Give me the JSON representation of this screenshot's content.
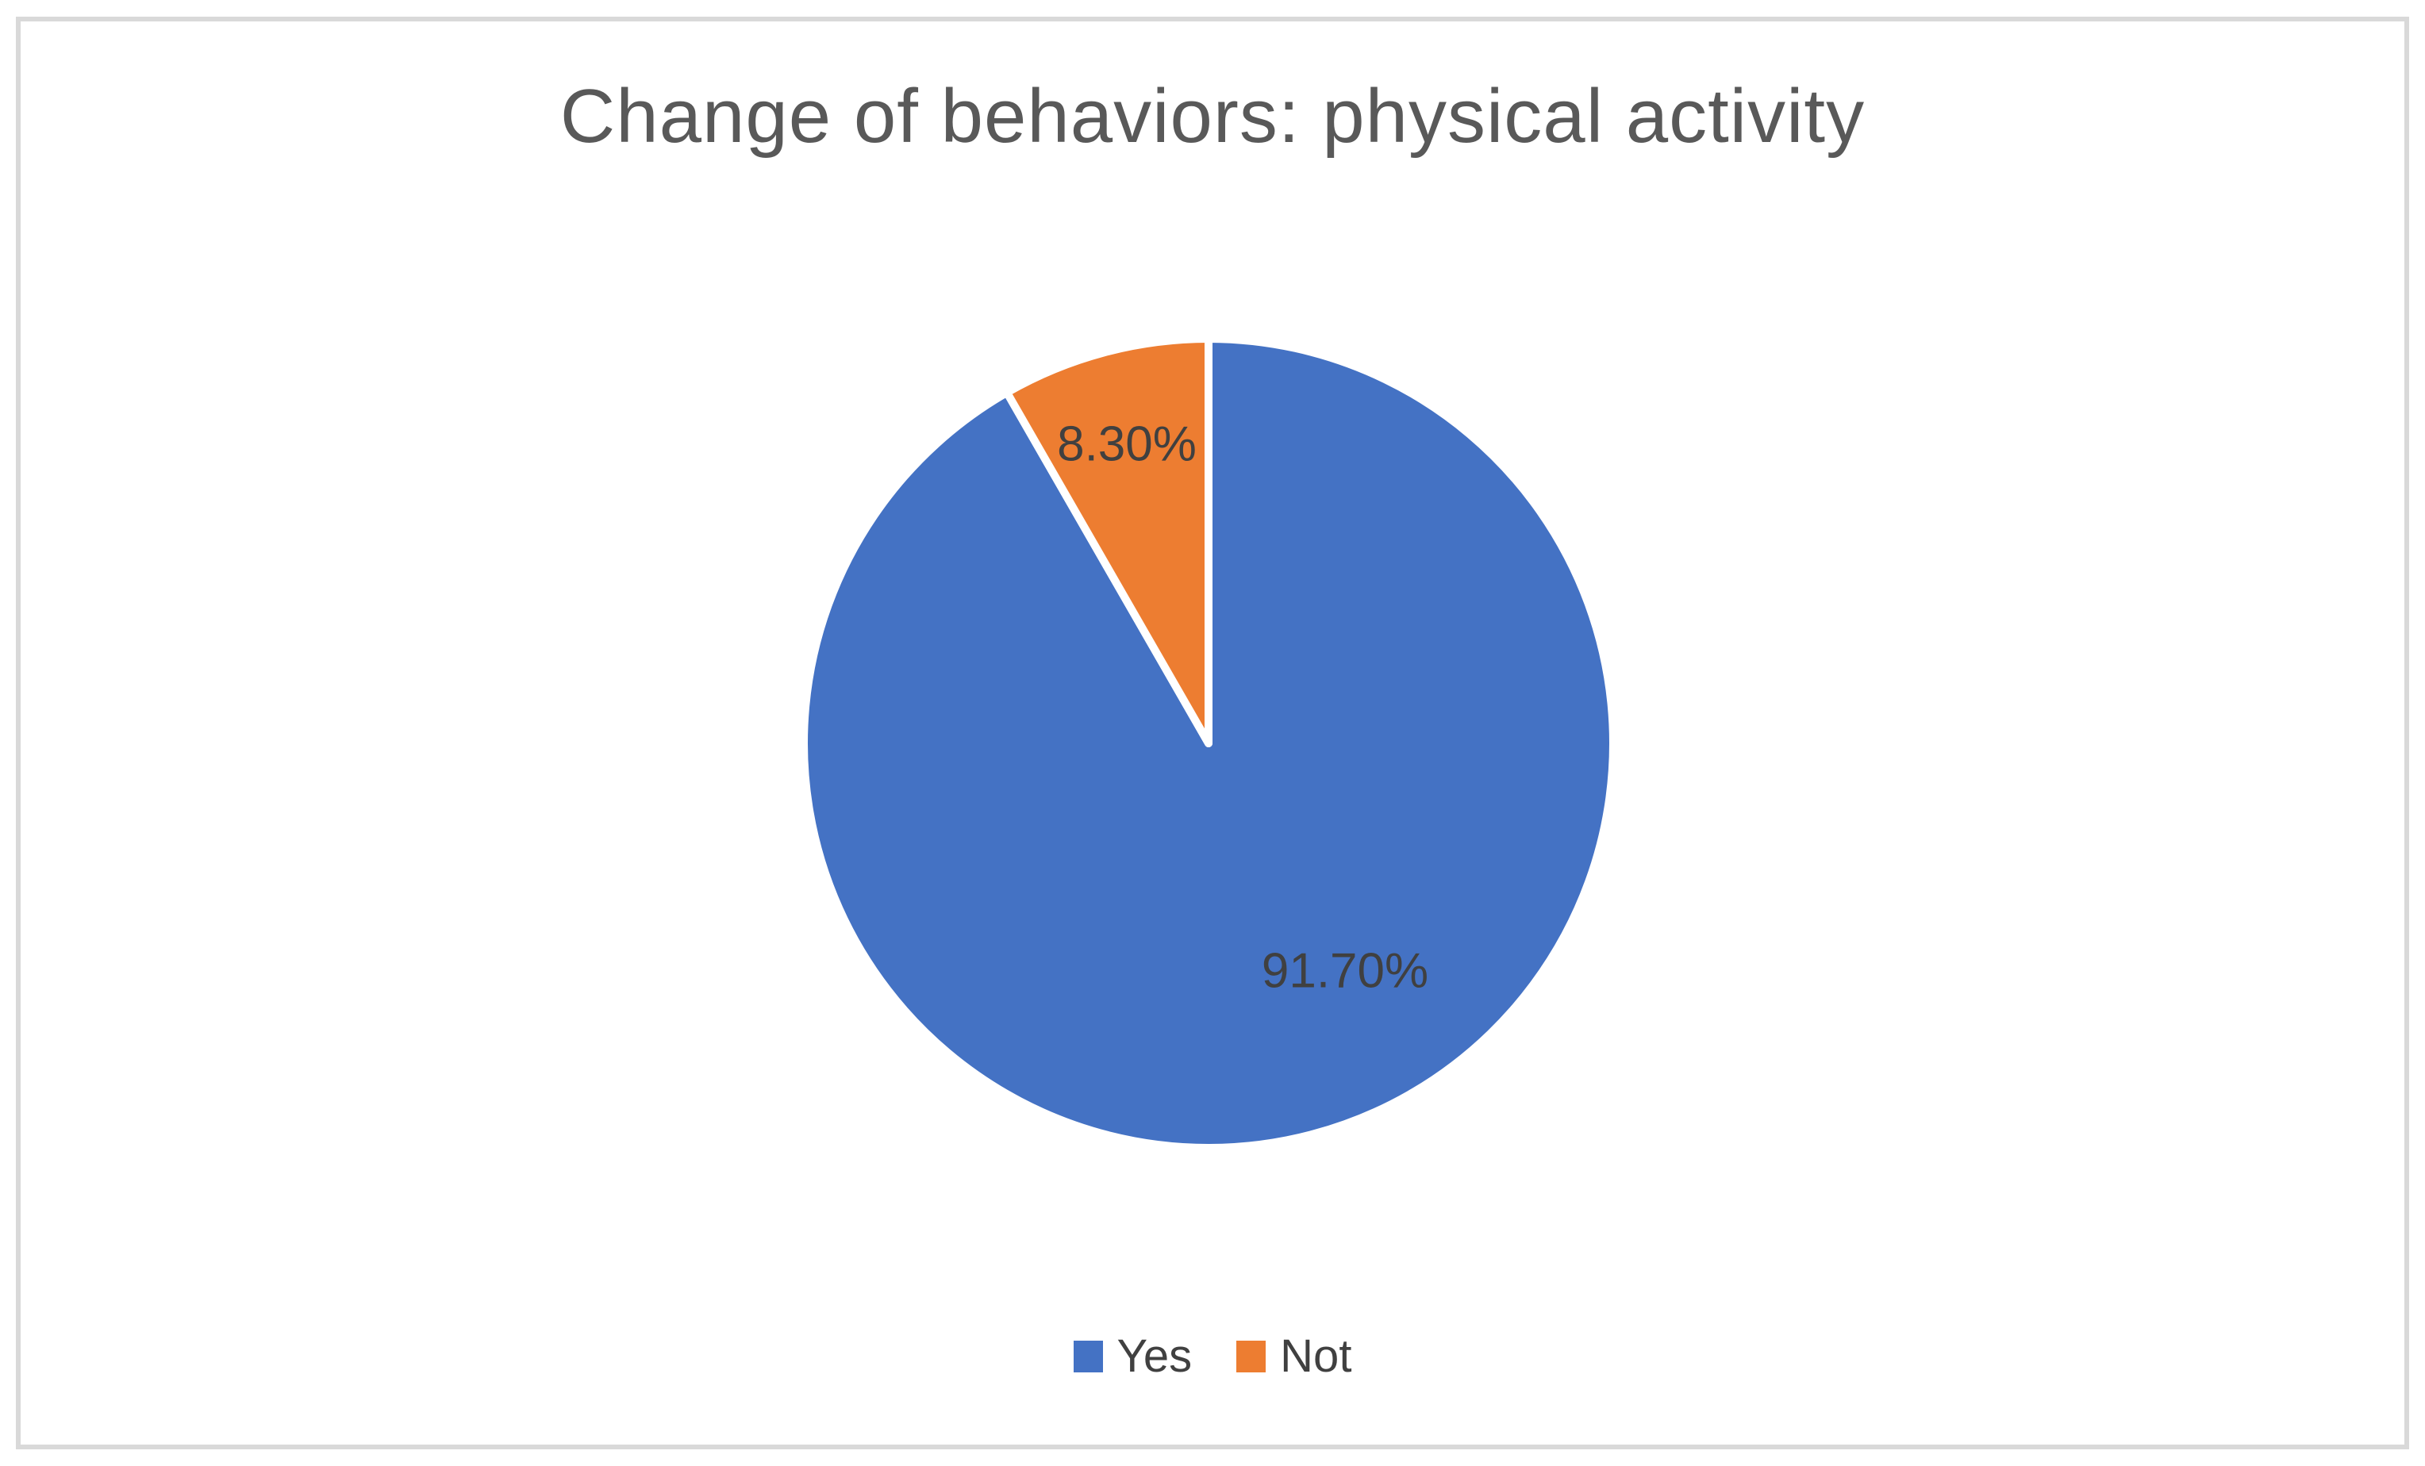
{
  "frame": {
    "border_color": "#d9d9d9",
    "background_color": "#ffffff"
  },
  "chart_data": {
    "type": "pie",
    "title": "Change of behaviors: physical activity",
    "categories": [
      "Yes",
      "Not"
    ],
    "values": [
      91.7,
      8.3
    ],
    "data_labels": [
      "91.70%",
      "8.30%"
    ],
    "colors": [
      "#4472c4",
      "#ed7d31"
    ],
    "slice_border_color": "#ffffff",
    "start_angle_deg": 0,
    "direction": "clockwise",
    "legend_position": "bottom",
    "title_color": "#595959",
    "data_label_color": "#404040"
  },
  "legend": {
    "text_color": "#404040",
    "items": [
      {
        "label": "Yes",
        "color": "#4472c4"
      },
      {
        "label": "Not",
        "color": "#ed7d31"
      }
    ]
  }
}
